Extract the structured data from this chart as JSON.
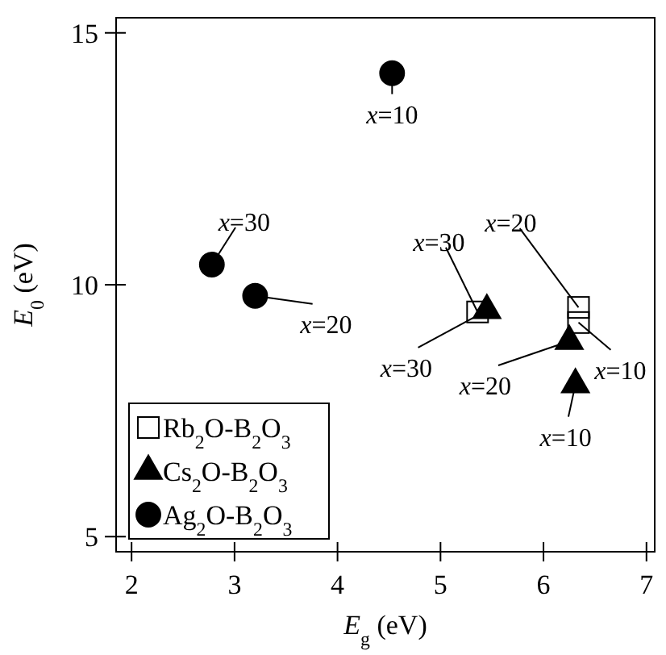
{
  "chart_data": {
    "type": "scatter",
    "xlabel": "E$_{g}$ (eV)",
    "ylabel": "E$_{0}$ (eV)",
    "xlim": [
      1.85,
      7.08
    ],
    "ylim": [
      4.7,
      15.3
    ],
    "xticks": [
      2,
      3,
      4,
      5,
      6,
      7
    ],
    "yticks": [
      5,
      10,
      15
    ],
    "legend": "bottom left",
    "grid": false,
    "series": [
      {
        "name": "Rb$_{2}$O-B$_{2}$O$_{3}$",
        "color": "#000000",
        "marker": "square",
        "x": [
          5.36,
          6.34,
          6.34
        ],
        "values": [
          9.46,
          9.55,
          9.25
        ]
      },
      {
        "name": "Cs$_{2}$O-B$_{2}$O$_{3}$",
        "color": "#000000",
        "marker": "triangle",
        "x": [
          5.45,
          6.25,
          6.31
        ],
        "values": [
          9.49,
          8.88,
          8.02
        ]
      },
      {
        "name": "Ag$_{2}$O-B$_{2}$O$_{3}$",
        "color": "#000000",
        "marker": "circle",
        "x": [
          4.53,
          2.78,
          3.2
        ],
        "values": [
          14.2,
          10.4,
          9.78
        ]
      }
    ],
    "annotations": [
      {
        "text": "x=10",
        "x": 4.53,
        "y": 14.2
      },
      {
        "text": "x=30",
        "x": 2.78,
        "y": 10.4
      },
      {
        "text": "x=20",
        "x": 3.2,
        "y": 9.78
      },
      {
        "text": "x=30",
        "x": 5.36,
        "y": 9.46
      },
      {
        "text": "x=30",
        "x": 5.45,
        "y": 9.49
      },
      {
        "text": "x=20",
        "x": 6.34,
        "y": 9.55
      },
      {
        "text": "x=10",
        "x": 6.34,
        "y": 9.25
      },
      {
        "text": "x=20",
        "x": 6.25,
        "y": 8.88
      },
      {
        "text": "x=10",
        "x": 6.31,
        "y": 8.02
      }
    ]
  }
}
